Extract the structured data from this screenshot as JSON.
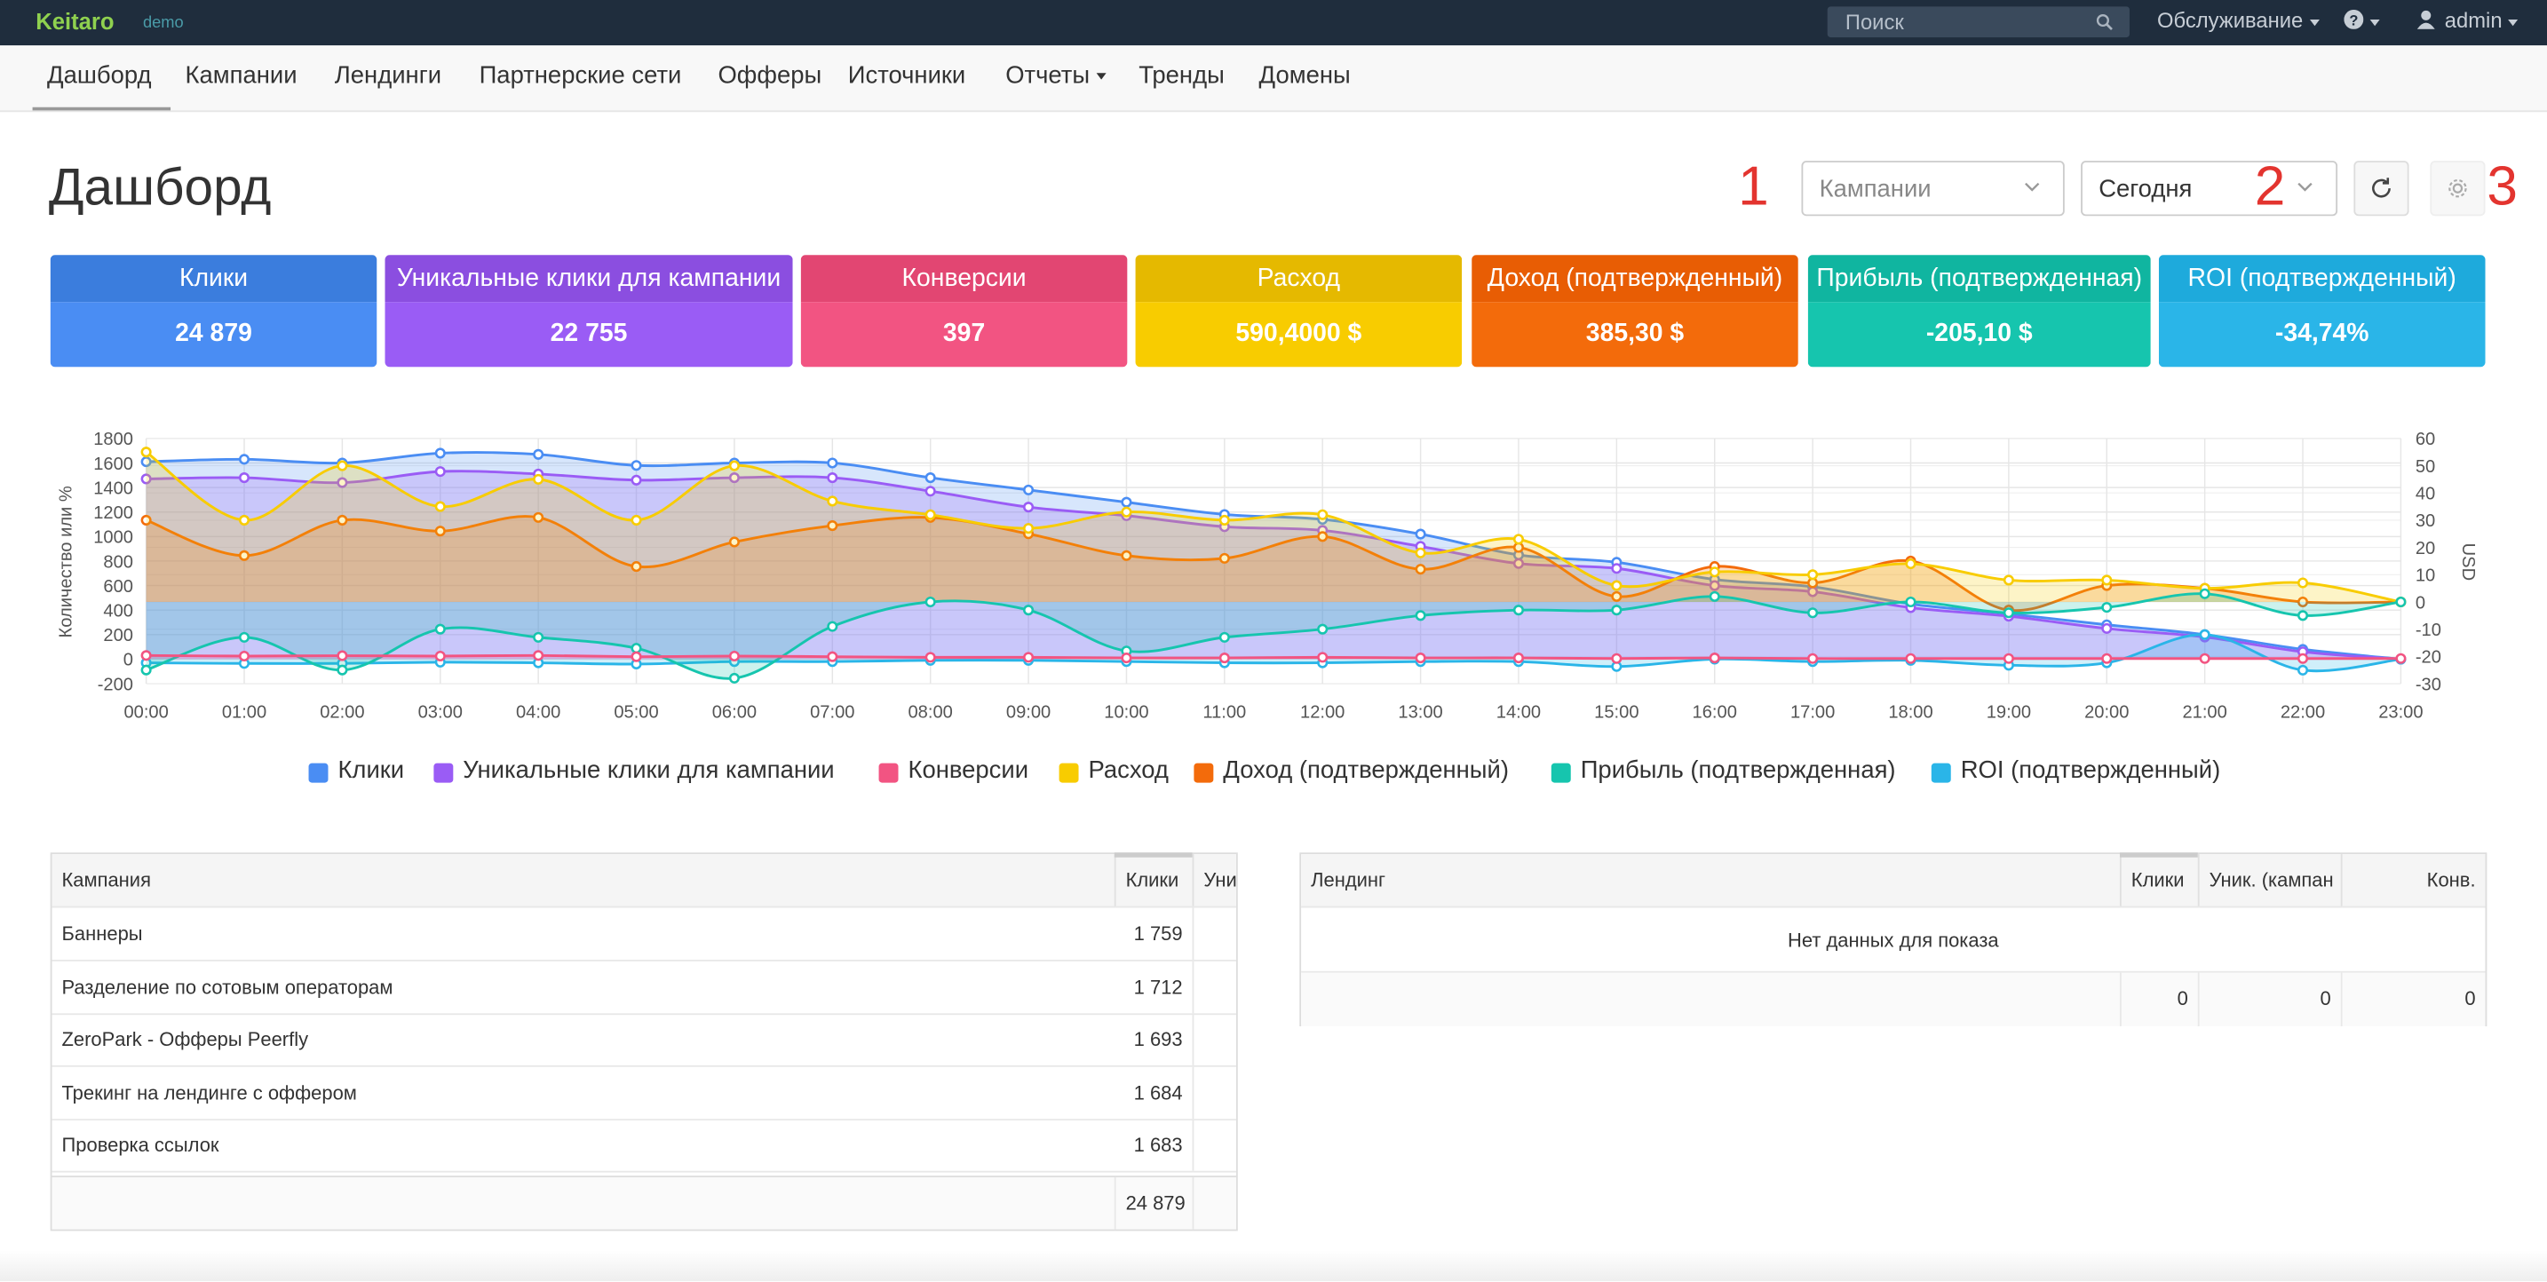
{
  "app": {
    "name": "Keitaro",
    "subtitle": "demo"
  },
  "topbar": {
    "search_placeholder": "Поиск",
    "maintenance": "Обслуживание",
    "user": "admin"
  },
  "nav": [
    "Дашборд",
    "Кампании",
    "Лендинги",
    "Партнерские сети",
    "Офферы",
    "Источники",
    "Отчеты",
    "Тренды",
    "Домены"
  ],
  "page": {
    "title": "Дашборд",
    "marker1": "1",
    "marker2": "2",
    "marker3": "3",
    "select_campaigns": "Кампании",
    "select_period": "Сегодня"
  },
  "cards": [
    {
      "label": "Клики",
      "value": "24 879",
      "head_color": "#3b7ddd",
      "body_color": "#4a8df3"
    },
    {
      "label": "Уникальные клики для кампании",
      "value": "22 755",
      "head_color": "#8b4ee0",
      "body_color": "#9a5cf5"
    },
    {
      "label": "Конверсии",
      "value": "397",
      "head_color": "#e24672",
      "body_color": "#f25482"
    },
    {
      "label": "Расход",
      "value": "590,4000 $",
      "head_color": "#e5b900",
      "body_color": "#f8cc00"
    },
    {
      "label": "Доход (подтвержденный)",
      "value": "385,30 $",
      "head_color": "#e85d04",
      "body_color": "#f36b0b"
    },
    {
      "label": "Прибыль (подтвержденная)",
      "value": "-205,10 $",
      "head_color": "#10b5a0",
      "body_color": "#16c5ae"
    },
    {
      "label": "ROI (подтвержденный)",
      "value": "-34,74%",
      "head_color": "#1eaadc",
      "body_color": "#2ab5e8"
    }
  ],
  "chart_data": {
    "type": "line",
    "ylabel": "Количество или %",
    "y2label": "USD",
    "ylim": [
      -200,
      1800
    ],
    "y2lim": [
      -30,
      60
    ],
    "yticks": [
      "1800",
      "1600",
      "1400",
      "1200",
      "1000",
      "800",
      "600",
      "400",
      "200",
      "0",
      "-200"
    ],
    "y2ticks": [
      "60",
      "50",
      "40",
      "30",
      "20",
      "10",
      "0",
      "-10",
      "-20",
      "-30"
    ],
    "categories": [
      "00:00",
      "01:00",
      "02:00",
      "03:00",
      "04:00",
      "05:00",
      "06:00",
      "07:00",
      "08:00",
      "09:00",
      "10:00",
      "11:00",
      "12:00",
      "13:00",
      "14:00",
      "15:00",
      "16:00",
      "17:00",
      "18:00",
      "19:00",
      "20:00",
      "21:00",
      "22:00",
      "23:00"
    ],
    "series": [
      {
        "name": "Клики",
        "axis": "left",
        "color": "#4a8df3",
        "values": [
          1610,
          1630,
          1600,
          1680,
          1670,
          1580,
          1600,
          1600,
          1480,
          1380,
          1280,
          1180,
          1140,
          1020,
          850,
          790,
          650,
          590,
          450,
          370,
          280,
          200,
          80,
          0
        ]
      },
      {
        "name": "Уникальные клики для кампании",
        "axis": "left",
        "color": "#9a5cf5",
        "values": [
          1470,
          1480,
          1440,
          1530,
          1510,
          1460,
          1480,
          1480,
          1370,
          1240,
          1170,
          1080,
          1050,
          920,
          780,
          740,
          600,
          550,
          420,
          350,
          250,
          180,
          60,
          0
        ]
      },
      {
        "name": "Конверсии",
        "axis": "left",
        "color": "#f25482",
        "values": [
          30,
          25,
          28,
          25,
          30,
          20,
          25,
          20,
          15,
          15,
          10,
          10,
          15,
          10,
          10,
          5,
          10,
          5,
          5,
          5,
          5,
          5,
          5,
          5
        ]
      },
      {
        "name": "Расход",
        "axis": "right",
        "color": "#f8cc00",
        "values": [
          55,
          30,
          50,
          35,
          45,
          30,
          50,
          37,
          32,
          27,
          33,
          30,
          32,
          18,
          23,
          6,
          11,
          10,
          14,
          8,
          8,
          5,
          7,
          0
        ]
      },
      {
        "name": "Доход (подтвержденный)",
        "axis": "right",
        "color": "#f36b0b",
        "values": [
          30,
          17,
          30,
          26,
          31,
          13,
          22,
          28,
          31,
          25,
          17,
          16,
          24,
          12,
          20,
          2,
          13,
          7,
          15,
          -3,
          6,
          5,
          0,
          0
        ]
      },
      {
        "name": "Прибыль (подтвержденная)",
        "axis": "right",
        "color": "#16c5ae",
        "values": [
          -25,
          -13,
          -25,
          -10,
          -13,
          -17,
          -28,
          -9,
          0,
          -3,
          -18,
          -13,
          -10,
          -5,
          -3,
          -3,
          2,
          -4,
          0,
          -4,
          -2,
          3,
          -5,
          0
        ]
      },
      {
        "name": "ROI (подтвержденный)",
        "axis": "left",
        "color": "#2ab5e8",
        "values": [
          -30,
          -35,
          -35,
          -25,
          -30,
          -40,
          -20,
          -20,
          -10,
          -10,
          -20,
          -30,
          -30,
          -20,
          -20,
          -60,
          0,
          -20,
          -10,
          -50,
          -30,
          200,
          -90,
          0
        ]
      }
    ]
  },
  "campaign_table": {
    "headers": [
      "Кампания",
      "Клики",
      "Уни"
    ],
    "rows": [
      {
        "name": "Баннеры",
        "clicks": "1 759"
      },
      {
        "name": "Разделение по сотовым операторам",
        "clicks": "1 712"
      },
      {
        "name": "ZeroPark - Офферы Peerfly",
        "clicks": "1 693"
      },
      {
        "name": "Трекинг на лендинге с оффером",
        "clicks": "1 684"
      },
      {
        "name": "Проверка ссылок",
        "clicks": "1 683"
      }
    ],
    "total": "24 879"
  },
  "landing_table": {
    "headers": [
      "Лендинг",
      "Клики",
      "Уник. (кампан",
      "Конв."
    ],
    "empty": "Нет данных для показа",
    "totals": [
      "0",
      "0",
      "0"
    ]
  }
}
